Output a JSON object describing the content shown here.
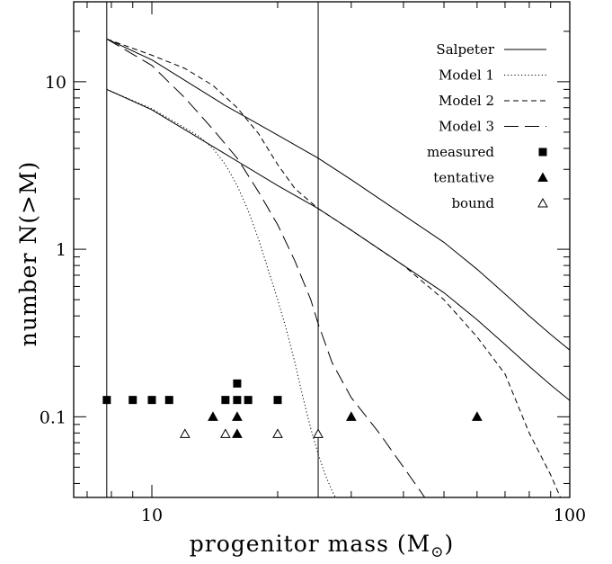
{
  "chart_data": {
    "type": "line",
    "xscale": "log",
    "yscale": "log",
    "xlim": [
      6.5,
      100
    ],
    "ylim": [
      0.033,
      30
    ],
    "xlabel": "progenitor mass (M",
    "xlabel_subscript": "⊙",
    "xlabel_close": ")",
    "ylabel": "number N(>M)",
    "xticks": [
      {
        "value": 10,
        "label": "10"
      },
      {
        "value": 100,
        "label": "100"
      }
    ],
    "yticks": [
      {
        "value": 0.1,
        "label": "0.1"
      },
      {
        "value": 1,
        "label": "1"
      },
      {
        "value": 10,
        "label": "10"
      }
    ],
    "vlines": [
      7.8,
      25
    ],
    "series": [
      {
        "name": "Salpeter",
        "style": "solid",
        "points": [
          [
            7.8,
            18
          ],
          [
            10,
            13.5
          ],
          [
            15,
            7.2
          ],
          [
            20,
            4.8
          ],
          [
            25,
            3.5
          ],
          [
            30,
            2.6
          ],
          [
            40,
            1.6
          ],
          [
            50,
            1.1
          ],
          [
            60,
            0.76
          ],
          [
            70,
            0.54
          ],
          [
            80,
            0.4
          ],
          [
            90,
            0.31
          ],
          [
            100,
            0.25
          ]
        ]
      },
      {
        "name": "",
        "style": "solid",
        "points": [
          [
            7.8,
            9
          ],
          [
            10,
            6.8
          ],
          [
            15,
            3.7
          ],
          [
            20,
            2.4
          ],
          [
            25,
            1.75
          ],
          [
            30,
            1.3
          ],
          [
            40,
            0.8
          ],
          [
            50,
            0.55
          ],
          [
            60,
            0.38
          ],
          [
            70,
            0.27
          ],
          [
            80,
            0.2
          ],
          [
            90,
            0.155
          ],
          [
            100,
            0.125
          ]
        ]
      },
      {
        "name": "Model 1",
        "style": "dotted",
        "points": [
          [
            7.8,
            9
          ],
          [
            10,
            6.9
          ],
          [
            12,
            5.3
          ],
          [
            13,
            4.7
          ],
          [
            14,
            4.0
          ],
          [
            15,
            3.2
          ],
          [
            16,
            2.4
          ],
          [
            17,
            1.7
          ],
          [
            18,
            1.15
          ],
          [
            19,
            0.75
          ],
          [
            20,
            0.5
          ],
          [
            21,
            0.33
          ],
          [
            22,
            0.21
          ],
          [
            23,
            0.13
          ],
          [
            24,
            0.085
          ],
          [
            25,
            0.06
          ],
          [
            26,
            0.045
          ],
          [
            27,
            0.036
          ],
          [
            27.5,
            0.033
          ]
        ]
      },
      {
        "name": "Model 2",
        "style": "dashed",
        "points": [
          [
            7.8,
            18
          ],
          [
            10,
            14.4
          ],
          [
            12,
            12
          ],
          [
            14,
            9.5
          ],
          [
            16,
            7
          ],
          [
            18,
            4.9
          ],
          [
            20,
            3.2
          ],
          [
            22,
            2.3
          ],
          [
            25,
            1.75
          ],
          [
            30,
            1.3
          ],
          [
            40,
            0.8
          ],
          [
            50,
            0.5
          ],
          [
            60,
            0.3
          ],
          [
            70,
            0.18
          ],
          [
            80,
            0.08
          ],
          [
            90,
            0.045
          ],
          [
            95,
            0.033
          ]
        ]
      },
      {
        "name": "Model 3",
        "style": "longdash",
        "points": [
          [
            7.8,
            18
          ],
          [
            10,
            12.5
          ],
          [
            12,
            8
          ],
          [
            14,
            5.2
          ],
          [
            16,
            3.5
          ],
          [
            18,
            2.2
          ],
          [
            20,
            1.4
          ],
          [
            22,
            0.85
          ],
          [
            24,
            0.5
          ],
          [
            25,
            0.36
          ],
          [
            27,
            0.21
          ],
          [
            30,
            0.13
          ],
          [
            35,
            0.08
          ],
          [
            40,
            0.05
          ],
          [
            45,
            0.033
          ]
        ]
      }
    ],
    "markers": [
      {
        "name": "measured",
        "symbol": "filled-square",
        "points": [
          [
            7.8,
            0.126
          ],
          [
            9,
            0.126
          ],
          [
            10,
            0.126
          ],
          [
            11,
            0.126
          ],
          [
            15,
            0.126
          ],
          [
            16,
            0.126
          ],
          [
            17,
            0.126
          ],
          [
            20,
            0.126
          ],
          [
            16,
            0.158
          ]
        ]
      },
      {
        "name": "tentative",
        "symbol": "filled-triangle",
        "points": [
          [
            14,
            0.1
          ],
          [
            16,
            0.1
          ],
          [
            16,
            0.079
          ],
          [
            30,
            0.1
          ],
          [
            60,
            0.1
          ]
        ]
      },
      {
        "name": "bound",
        "symbol": "open-triangle",
        "points": [
          [
            12,
            0.079
          ],
          [
            15,
            0.079
          ],
          [
            20,
            0.079
          ],
          [
            25,
            0.079
          ]
        ]
      }
    ],
    "legend": "top-right"
  }
}
